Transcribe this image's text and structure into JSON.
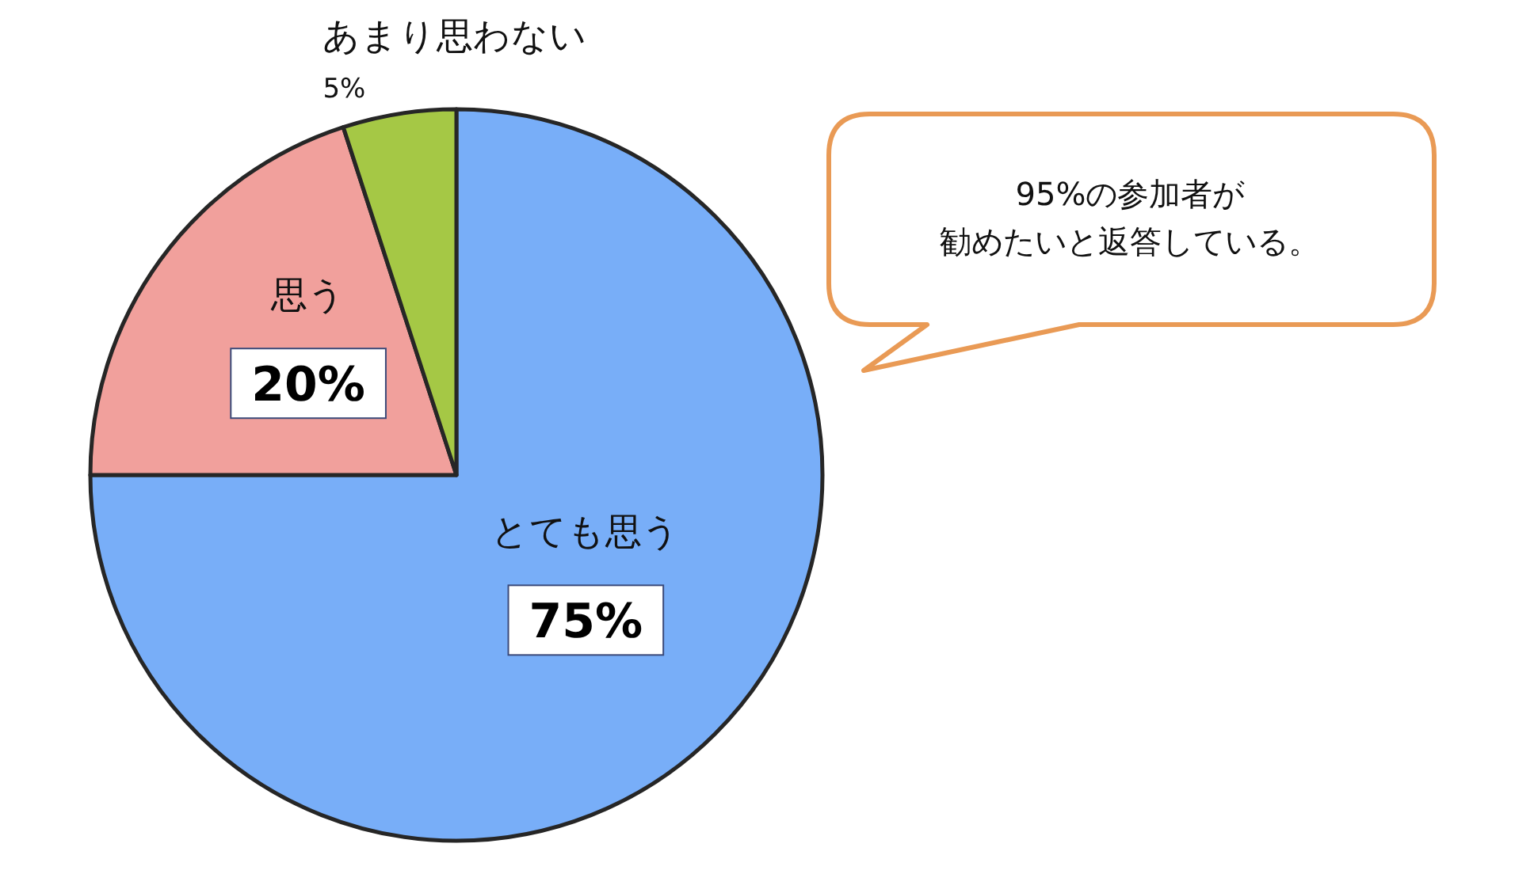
{
  "chart_data": {
    "type": "pie",
    "categories": [
      "とても思う",
      "思う",
      "あまり思わない"
    ],
    "values": [
      75,
      20,
      5
    ],
    "colors": [
      "#78aef8",
      "#f1a09c",
      "#a5c845"
    ],
    "value_labels": [
      "75%",
      "20%",
      "5%"
    ],
    "annotations": [
      "95%の参加者が",
      "勧めたいと返答している。"
    ]
  }
}
